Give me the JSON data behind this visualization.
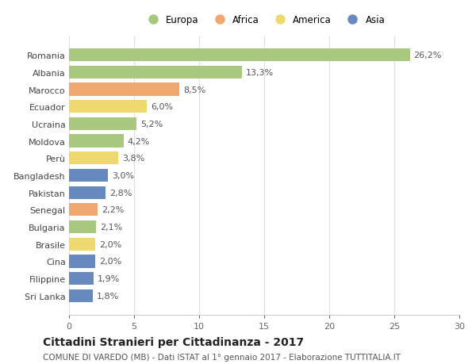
{
  "countries": [
    "Romania",
    "Albania",
    "Marocco",
    "Ecuador",
    "Ucraina",
    "Moldova",
    "Perù",
    "Bangladesh",
    "Pakistan",
    "Senegal",
    "Bulgaria",
    "Brasile",
    "Cina",
    "Filippine",
    "Sri Lanka"
  ],
  "values": [
    26.2,
    13.3,
    8.5,
    6.0,
    5.2,
    4.2,
    3.8,
    3.0,
    2.8,
    2.2,
    2.1,
    2.0,
    2.0,
    1.9,
    1.8
  ],
  "labels": [
    "26,2%",
    "13,3%",
    "8,5%",
    "6,0%",
    "5,2%",
    "4,2%",
    "3,8%",
    "3,0%",
    "2,8%",
    "2,2%",
    "2,1%",
    "2,0%",
    "2,0%",
    "1,9%",
    "1,8%"
  ],
  "continents": [
    "Europa",
    "Europa",
    "Africa",
    "America",
    "Europa",
    "Europa",
    "America",
    "Asia",
    "Asia",
    "Africa",
    "Europa",
    "America",
    "Asia",
    "Asia",
    "Asia"
  ],
  "colors": {
    "Europa": "#a8c880",
    "Africa": "#f0a870",
    "America": "#f0d870",
    "Asia": "#6888c0"
  },
  "xlim": [
    0,
    30
  ],
  "xticks": [
    0,
    5,
    10,
    15,
    20,
    25,
    30
  ],
  "title": "Cittadini Stranieri per Cittadinanza - 2017",
  "subtitle": "COMUNE DI VAREDO (MB) - Dati ISTAT al 1° gennaio 2017 - Elaborazione TUTTITALIA.IT",
  "background_color": "#ffffff",
  "grid_color": "#e0e0e0",
  "bar_height": 0.75,
  "title_fontsize": 10,
  "subtitle_fontsize": 7.5,
  "label_fontsize": 8,
  "tick_fontsize": 8,
  "legend_fontsize": 8.5,
  "legend_order": [
    "Europa",
    "Africa",
    "America",
    "Asia"
  ]
}
